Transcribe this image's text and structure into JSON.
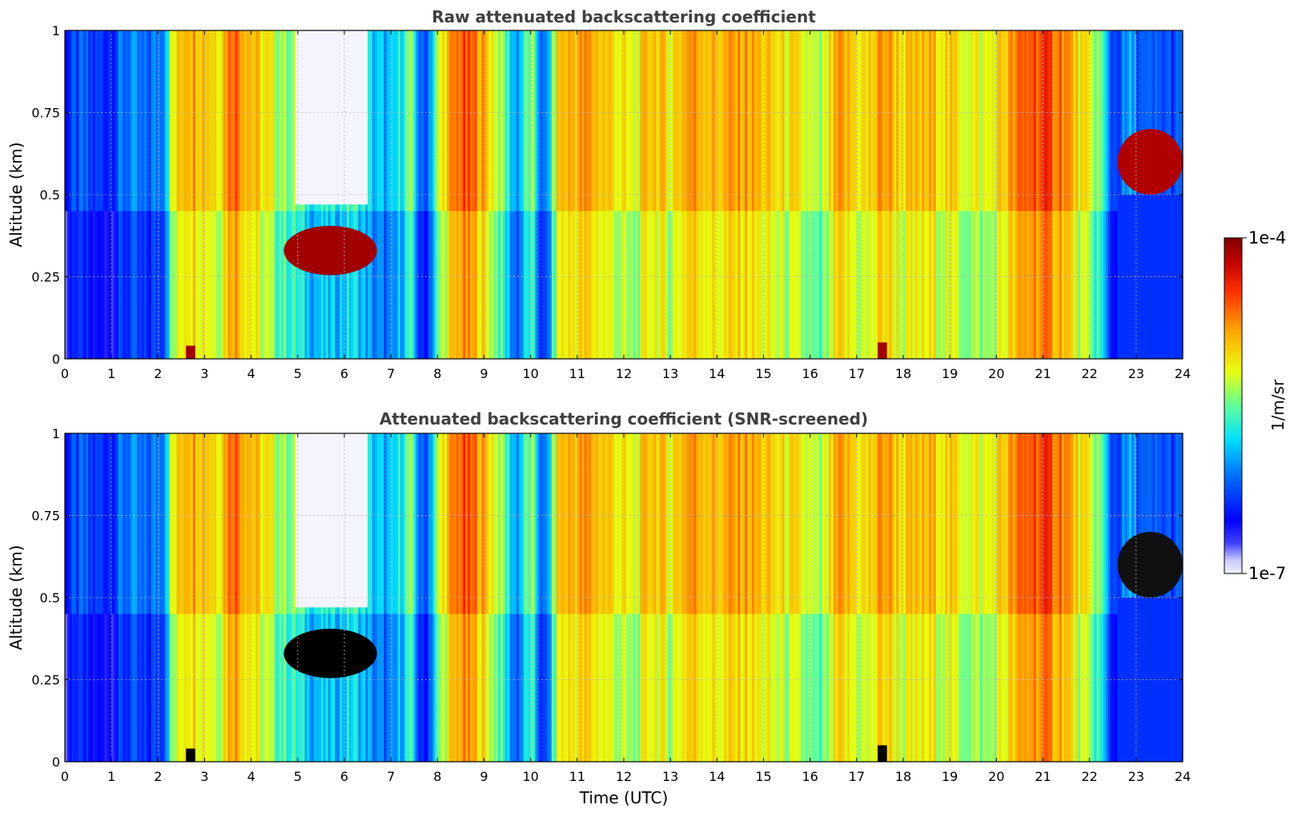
{
  "chart_data": [
    {
      "type": "heatmap",
      "title": "Raw attenuated backscattering coefficient",
      "xlabel": "",
      "ylabel": "Altitude (km)",
      "xlim": [
        0,
        24
      ],
      "ylim": [
        0,
        1
      ],
      "xticks": [
        "0",
        "1",
        "2",
        "3",
        "4",
        "5",
        "6",
        "7",
        "8",
        "9",
        "10",
        "11",
        "12",
        "13",
        "14",
        "15",
        "16",
        "17",
        "18",
        "19",
        "20",
        "21",
        "22",
        "23",
        "24"
      ],
      "yticks": [
        "0",
        "0.25",
        "0.5",
        "0.75",
        "1"
      ],
      "grid": true,
      "colorscale": "jet",
      "value_range": [
        "1e-7",
        "1e-4"
      ],
      "log_scale": true,
      "masked_pixels": false
    },
    {
      "type": "heatmap",
      "title": "Attenuated backscattering coefficient (SNR-screened)",
      "xlabel": "Time (UTC)",
      "ylabel": "Altitude (km)",
      "xlim": [
        0,
        24
      ],
      "ylim": [
        0,
        1
      ],
      "xticks": [
        "0",
        "1",
        "2",
        "3",
        "4",
        "5",
        "6",
        "7",
        "8",
        "9",
        "10",
        "11",
        "12",
        "13",
        "14",
        "15",
        "16",
        "17",
        "18",
        "19",
        "20",
        "21",
        "22",
        "23",
        "24"
      ],
      "yticks": [
        "0",
        "0.25",
        "0.5",
        "0.75",
        "1"
      ],
      "grid": true,
      "colorscale": "jet",
      "value_range": [
        "1e-7",
        "1e-4"
      ],
      "log_scale": true,
      "masked_pixels": true,
      "mask_color": "#000000"
    }
  ],
  "colorbar": {
    "max_label": "1e-4",
    "min_label": "1e-7",
    "unit_label": "1/m/sr",
    "colors": [
      "#f0f0ff",
      "#c8c8ff",
      "#9a9aff",
      "#6c6cff",
      "#0000ff",
      "#0050ff",
      "#00a0ff",
      "#00e8ff",
      "#40ffc0",
      "#a0ff60",
      "#ffff00",
      "#ffc000",
      "#ff8000",
      "#ff3000",
      "#d00000",
      "#800000"
    ]
  }
}
